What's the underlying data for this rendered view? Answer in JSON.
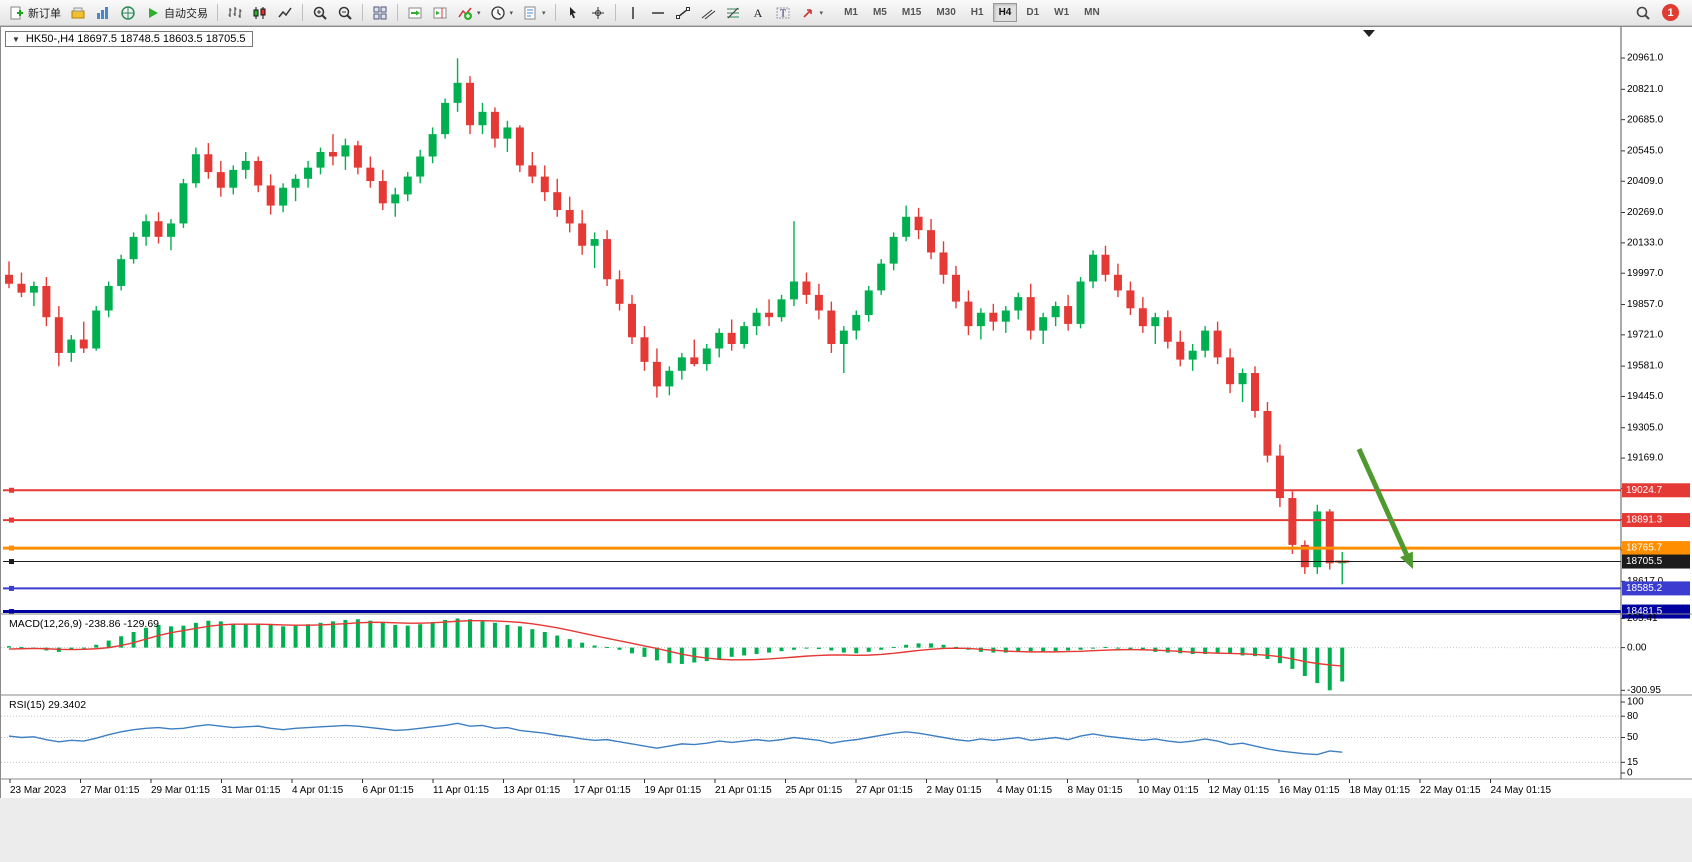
{
  "toolbar": {
    "items": [
      {
        "name": "new-order",
        "icon": "new-order-icon",
        "label": "新订单"
      },
      {
        "name": "market-watch",
        "icon": "market-watch-icon"
      },
      {
        "name": "chart-window",
        "icon": "charts-icon"
      },
      {
        "name": "history-center",
        "icon": "history-icon"
      },
      {
        "name": "auto-trading",
        "icon": "autotrade-icon",
        "label": "自动交易"
      },
      {
        "sep": true
      },
      {
        "name": "bar-chart",
        "icon": "bar-chart-icon"
      },
      {
        "name": "candlestick-chart",
        "icon": "candlestick-icon"
      },
      {
        "name": "line-chart",
        "icon": "line-chart-icon"
      },
      {
        "sep": true
      },
      {
        "name": "zoom-in",
        "icon": "zoom-in-icon"
      },
      {
        "name": "zoom-out",
        "icon": "zoom-out-icon"
      },
      {
        "sep": true
      },
      {
        "name": "tile-windows",
        "icon": "tile-windows-icon"
      },
      {
        "sep": true
      },
      {
        "name": "auto-scroll",
        "icon": "auto-scroll-icon"
      },
      {
        "name": "chart-shift",
        "icon": "chart-shift-icon"
      },
      {
        "name": "indicators",
        "icon": "indicators-icon",
        "caret": true
      },
      {
        "name": "periods",
        "icon": "periods-icon",
        "caret": true
      },
      {
        "name": "templates",
        "icon": "templates-icon",
        "caret": true
      },
      {
        "sep": true
      },
      {
        "name": "cursor",
        "icon": "cursor-icon"
      },
      {
        "name": "crosshair",
        "icon": "crosshair-icon"
      },
      {
        "sep": true
      },
      {
        "name": "vertical-line",
        "icon": "vline-icon"
      },
      {
        "name": "horizontal-line",
        "icon": "hline-icon"
      },
      {
        "name": "trendline",
        "icon": "trendline-icon"
      },
      {
        "name": "equidistant-channel",
        "icon": "channel-icon"
      },
      {
        "name": "fibonacci",
        "icon": "fibonacci-icon"
      },
      {
        "name": "text",
        "icon": "text-icon"
      },
      {
        "name": "text-label",
        "icon": "label-icon"
      },
      {
        "name": "arrows",
        "icon": "arrows-icon",
        "caret": true
      }
    ],
    "timeframes": [
      {
        "label": "M1",
        "active": false
      },
      {
        "label": "M5",
        "active": false
      },
      {
        "label": "M15",
        "active": false
      },
      {
        "label": "M30",
        "active": false
      },
      {
        "label": "H1",
        "active": false
      },
      {
        "label": "H4",
        "active": true
      },
      {
        "label": "D1",
        "active": false
      },
      {
        "label": "W1",
        "active": false
      },
      {
        "label": "MN",
        "active": false
      }
    ],
    "badge": "1"
  },
  "window": {
    "collapse_marker": "▼",
    "title": "HK50-,H4 18697.5 18748.5 18603.5 18705.5"
  },
  "chart_data": {
    "type": "candlestick",
    "symbol": "HK50-",
    "period": "H4",
    "ohlc_current": {
      "open": 18697.5,
      "high": 18748.5,
      "low": 18603.5,
      "close": 18705.5
    },
    "up_color": "#00b050",
    "down_color": "#e53935",
    "main": {
      "ylim": [
        18475,
        21100
      ],
      "price_axis_ticks": [
        "20961.0",
        "20821.0",
        "20685.0",
        "20545.0",
        "20409.0",
        "20269.0",
        "20133.0",
        "19997.0",
        "19857.0",
        "19721.0",
        "19581.0",
        "19445.0",
        "19305.0",
        "19169.0",
        "19033.0",
        "18893.0",
        "18757.0",
        "18617.0"
      ],
      "candles": [
        [
          19990,
          20050,
          19930,
          19950
        ],
        [
          19950,
          20000,
          19890,
          19910
        ],
        [
          19910,
          19960,
          19850,
          19940
        ],
        [
          19940,
          19980,
          19760,
          19800
        ],
        [
          19800,
          19850,
          19580,
          19640
        ],
        [
          19640,
          19720,
          19600,
          19700
        ],
        [
          19700,
          19780,
          19640,
          19660
        ],
        [
          19660,
          19850,
          19650,
          19830
        ],
        [
          19830,
          19960,
          19800,
          19940
        ],
        [
          19940,
          20080,
          19920,
          20060
        ],
        [
          20060,
          20180,
          20040,
          20160
        ],
        [
          20160,
          20260,
          20120,
          20230
        ],
        [
          20230,
          20270,
          20130,
          20160
        ],
        [
          20160,
          20240,
          20100,
          20220
        ],
        [
          20220,
          20420,
          20200,
          20400
        ],
        [
          20400,
          20560,
          20380,
          20530
        ],
        [
          20530,
          20580,
          20420,
          20450
        ],
        [
          20450,
          20500,
          20340,
          20380
        ],
        [
          20380,
          20480,
          20350,
          20460
        ],
        [
          20460,
          20540,
          20420,
          20500
        ],
        [
          20500,
          20520,
          20360,
          20390
        ],
        [
          20390,
          20440,
          20260,
          20300
        ],
        [
          20300,
          20400,
          20270,
          20380
        ],
        [
          20380,
          20440,
          20320,
          20420
        ],
        [
          20420,
          20500,
          20380,
          20470
        ],
        [
          20470,
          20560,
          20440,
          20540
        ],
        [
          20540,
          20620,
          20480,
          20520
        ],
        [
          20520,
          20600,
          20460,
          20570
        ],
        [
          20570,
          20590,
          20440,
          20470
        ],
        [
          20470,
          20520,
          20380,
          20410
        ],
        [
          20410,
          20460,
          20280,
          20310
        ],
        [
          20310,
          20380,
          20250,
          20350
        ],
        [
          20350,
          20450,
          20320,
          20430
        ],
        [
          20430,
          20550,
          20400,
          20520
        ],
        [
          20520,
          20650,
          20490,
          20620
        ],
        [
          20620,
          20780,
          20600,
          20760
        ],
        [
          20760,
          20960,
          20720,
          20850
        ],
        [
          20850,
          20880,
          20620,
          20660
        ],
        [
          20660,
          20760,
          20620,
          20720
        ],
        [
          20720,
          20740,
          20560,
          20600
        ],
        [
          20600,
          20680,
          20540,
          20650
        ],
        [
          20650,
          20660,
          20450,
          20480
        ],
        [
          20480,
          20540,
          20400,
          20430
        ],
        [
          20430,
          20480,
          20320,
          20360
        ],
        [
          20360,
          20420,
          20250,
          20280
        ],
        [
          20280,
          20340,
          20180,
          20220
        ],
        [
          20220,
          20280,
          20080,
          20120
        ],
        [
          20120,
          20180,
          20020,
          20150
        ],
        [
          20150,
          20190,
          19940,
          19970
        ],
        [
          19970,
          20010,
          19830,
          19860
        ],
        [
          19860,
          19900,
          19680,
          19710
        ],
        [
          19710,
          19760,
          19560,
          19600
        ],
        [
          19600,
          19660,
          19440,
          19490
        ],
        [
          19490,
          19580,
          19450,
          19560
        ],
        [
          19560,
          19640,
          19520,
          19620
        ],
        [
          19620,
          19700,
          19580,
          19590
        ],
        [
          19590,
          19680,
          19560,
          19660
        ],
        [
          19660,
          19750,
          19620,
          19730
        ],
        [
          19730,
          19790,
          19650,
          19680
        ],
        [
          19680,
          19780,
          19660,
          19760
        ],
        [
          19760,
          19840,
          19720,
          19820
        ],
        [
          19820,
          19880,
          19760,
          19800
        ],
        [
          19800,
          19900,
          19780,
          19880
        ],
        [
          19880,
          20230,
          19850,
          19960
        ],
        [
          19960,
          20000,
          19860,
          19900
        ],
        [
          19900,
          19950,
          19790,
          19830
        ],
        [
          19830,
          19870,
          19640,
          19680
        ],
        [
          19680,
          19760,
          19550,
          19740
        ],
        [
          19740,
          19830,
          19700,
          19810
        ],
        [
          19810,
          19940,
          19780,
          19920
        ],
        [
          19920,
          20060,
          19900,
          20040
        ],
        [
          20040,
          20180,
          20010,
          20160
        ],
        [
          20160,
          20300,
          20140,
          20250
        ],
        [
          20250,
          20290,
          20150,
          20190
        ],
        [
          20190,
          20240,
          20060,
          20090
        ],
        [
          20090,
          20140,
          19950,
          19990
        ],
        [
          19990,
          20030,
          19840,
          19870
        ],
        [
          19870,
          19920,
          19720,
          19760
        ],
        [
          19760,
          19840,
          19700,
          19820
        ],
        [
          19820,
          19860,
          19740,
          19780
        ],
        [
          19780,
          19850,
          19730,
          19830
        ],
        [
          19830,
          19910,
          19790,
          19890
        ],
        [
          19890,
          19950,
          19700,
          19740
        ],
        [
          19740,
          19820,
          19680,
          19800
        ],
        [
          19800,
          19870,
          19760,
          19850
        ],
        [
          19850,
          19900,
          19740,
          19770
        ],
        [
          19770,
          19980,
          19750,
          19960
        ],
        [
          19960,
          20100,
          19930,
          20080
        ],
        [
          20080,
          20120,
          19960,
          19990
        ],
        [
          19990,
          20040,
          19890,
          19920
        ],
        [
          19920,
          19960,
          19810,
          19840
        ],
        [
          19840,
          19890,
          19730,
          19760
        ],
        [
          19760,
          19820,
          19680,
          19800
        ],
        [
          19800,
          19830,
          19660,
          19690
        ],
        [
          19690,
          19740,
          19580,
          19610
        ],
        [
          19610,
          19680,
          19560,
          19650
        ],
        [
          19650,
          19760,
          19620,
          19740
        ],
        [
          19740,
          19780,
          19590,
          19620
        ],
        [
          19620,
          19660,
          19460,
          19500
        ],
        [
          19500,
          19570,
          19420,
          19550
        ],
        [
          19550,
          19580,
          19350,
          19380
        ],
        [
          19380,
          19420,
          19150,
          19180
        ],
        [
          19180,
          19230,
          18950,
          18990
        ],
        [
          18990,
          19020,
          18740,
          18780
        ],
        [
          18780,
          18800,
          18650,
          18680
        ],
        [
          18680,
          18960,
          18650,
          18930
        ],
        [
          18930,
          18940,
          18670,
          18697.5
        ],
        [
          18697.5,
          18748.5,
          18603.5,
          18705.5
        ]
      ]
    },
    "hlines": [
      {
        "price": 19024.7,
        "label": "19024.7",
        "color": "#e53935",
        "width": 2
      },
      {
        "price": 18891.3,
        "label": "18891.3",
        "color": "#e53935",
        "width": 2
      },
      {
        "price": 18765.7,
        "label": "18765.7",
        "color": "#ff8f00",
        "width": 3
      },
      {
        "price": 18705.5,
        "label": "18705.5",
        "color": "#1c1c1c",
        "width": 1
      },
      {
        "price": 18585.2,
        "label": "18585.2",
        "color": "#3c3cd0",
        "width": 2
      },
      {
        "price": 18481.5,
        "label": "18481.5",
        "color": "#0000a0",
        "width": 3
      }
    ],
    "annotation_arrow": {
      "color": "#4e9a2e",
      "from": [
        1358,
        422
      ],
      "to": [
        1412,
        542
      ]
    },
    "macd": {
      "label": "MACD(12,26,9)",
      "value_main": "-238.86",
      "value_signal": "-129.69",
      "axis_ticks": [
        "205.41",
        "0.00",
        "-300.95"
      ],
      "axis_values": [
        205.41,
        0,
        -300.95
      ],
      "ylim": [
        -320,
        230
      ],
      "hist_color": "#00b050",
      "signal_color": "#e53935",
      "hist": [
        10,
        5,
        -5,
        -20,
        -30,
        -15,
        0,
        20,
        50,
        80,
        110,
        140,
        160,
        150,
        155,
        175,
        190,
        185,
        170,
        165,
        170,
        160,
        150,
        155,
        165,
        175,
        185,
        195,
        200,
        190,
        175,
        160,
        155,
        165,
        180,
        195,
        205.41,
        200,
        185,
        175,
        160,
        150,
        130,
        110,
        85,
        60,
        35,
        15,
        5,
        -15,
        -40,
        -65,
        -90,
        -110,
        -115,
        -105,
        -95,
        -80,
        -65,
        -55,
        -45,
        -35,
        -25,
        -15,
        -5,
        -10,
        -20,
        -35,
        -40,
        -30,
        -15,
        5,
        20,
        30,
        30,
        20,
        5,
        -15,
        -30,
        -35,
        -35,
        -30,
        -25,
        -30,
        -25,
        -20,
        -15,
        -5,
        5,
        0,
        -10,
        -20,
        -30,
        -35,
        -40,
        -45,
        -45,
        -40,
        -45,
        -55,
        -60,
        -80,
        -110,
        -150,
        -200,
        -250,
        -300.95,
        -238.86
      ],
      "signal": [
        -10,
        -8,
        -6,
        -8,
        -12,
        -14,
        -12,
        -8,
        0,
        15,
        35,
        60,
        85,
        105,
        120,
        135,
        150,
        160,
        165,
        165,
        165,
        163,
        160,
        158,
        158,
        160,
        164,
        169,
        175,
        178,
        178,
        175,
        172,
        172,
        175,
        180,
        186,
        190,
        190,
        188,
        184,
        178,
        168,
        155,
        140,
        122,
        103,
        84,
        66,
        48,
        30,
        12,
        -6,
        -26,
        -46,
        -62,
        -74,
        -82,
        -86,
        -86,
        -84,
        -80,
        -74,
        -67,
        -60,
        -55,
        -52,
        -52,
        -54,
        -53,
        -48,
        -40,
        -30,
        -20,
        -12,
        -6,
        -4,
        -6,
        -12,
        -18,
        -24,
        -28,
        -30,
        -30,
        -30,
        -28,
        -26,
        -22,
        -18,
        -15,
        -14,
        -15,
        -18,
        -22,
        -27,
        -32,
        -36,
        -39,
        -41,
        -44,
        -48,
        -54,
        -64,
        -80,
        -98,
        -112,
        -122,
        -129.69
      ]
    },
    "rsi": {
      "label": "RSI(15)",
      "value": "29.3402",
      "axis_ticks": [
        "100",
        "80",
        "50",
        "15",
        "0"
      ],
      "axis_values": [
        100,
        80,
        50,
        15,
        0
      ],
      "levels": [
        80,
        50,
        15
      ],
      "color": "#3e7fc1",
      "values": [
        52,
        50,
        51,
        47,
        44,
        46,
        45,
        49,
        54,
        58,
        61,
        63,
        64,
        62,
        63,
        66,
        68,
        66,
        64,
        65,
        66,
        63,
        61,
        63,
        64,
        65,
        66,
        67,
        66,
        64,
        62,
        60,
        61,
        63,
        65,
        67,
        70,
        66,
        67,
        63,
        64,
        60,
        58,
        56,
        53,
        51,
        48,
        46,
        47,
        44,
        41,
        38,
        35,
        38,
        41,
        40,
        42,
        45,
        43,
        45,
        47,
        45,
        47,
        50,
        48,
        46,
        42,
        45,
        47,
        50,
        53,
        56,
        58,
        56,
        53,
        50,
        47,
        45,
        48,
        46,
        48,
        50,
        46,
        48,
        50,
        47,
        52,
        55,
        52,
        50,
        48,
        46,
        48,
        45,
        43,
        45,
        48,
        45,
        40,
        42,
        38,
        34,
        31,
        29,
        27,
        26,
        31,
        29.34
      ]
    },
    "time_axis": [
      "23 Mar 2023",
      "27 Mar 01:15",
      "29 Mar 01:15",
      "31 Mar 01:15",
      "4 Apr 01:15",
      "6 Apr 01:15",
      "11 Apr 01:15",
      "13 Apr 01:15",
      "17 Apr 01:15",
      "19 Apr 01:15",
      "21 Apr 01:15",
      "25 Apr 01:15",
      "27 Apr 01:15",
      "2 May 01:15",
      "4 May 01:15",
      "8 May 01:15",
      "10 May 01:15",
      "12 May 01:15",
      "16 May 01:15",
      "18 May 01:15",
      "22 May 01:15",
      "24 May 01:15"
    ]
  }
}
